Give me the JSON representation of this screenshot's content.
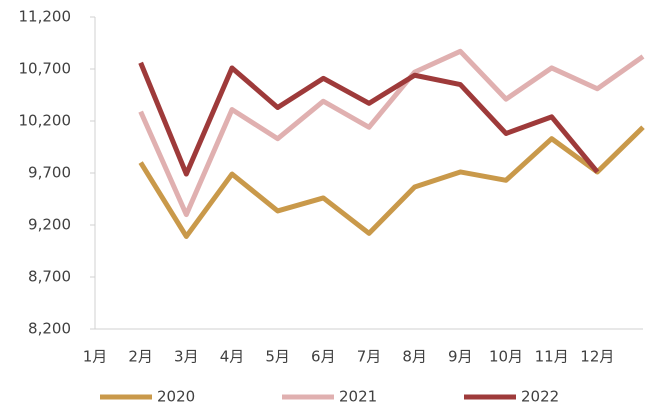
{
  "chart_data": {
    "type": "line",
    "categories": [
      "1月",
      "2月",
      "3月",
      "4月",
      "5月",
      "6月",
      "7月",
      "8月",
      "9月",
      "10月",
      "11月",
      "12月"
    ],
    "series": [
      {
        "name": "2020",
        "color": "#c9994a",
        "values": [
          9800,
          9090,
          9690,
          9335,
          9460,
          9120,
          9565,
          9710,
          9630,
          10030,
          9710,
          10140
        ]
      },
      {
        "name": "2021",
        "color": "#e0b0b0",
        "values": [
          10290,
          9300,
          10310,
          10030,
          10390,
          10140,
          10670,
          10870,
          10410,
          10710,
          10510,
          10820
        ]
      },
      {
        "name": "2022",
        "color": "#9e3a3a",
        "values": [
          10760,
          9690,
          10710,
          10330,
          10610,
          10370,
          10640,
          10550,
          10080,
          10240,
          9710,
          null
        ]
      }
    ],
    "ylim": [
      8200,
      11200
    ],
    "yticks": [
      {
        "value": 8200,
        "label": "8,200"
      },
      {
        "value": 8700,
        "label": "8,700"
      },
      {
        "value": 9200,
        "label": "9,200"
      },
      {
        "value": 9700,
        "label": "9,700"
      },
      {
        "value": 10200,
        "label": "10,200"
      },
      {
        "value": 10700,
        "label": "10,700"
      },
      {
        "value": 11200,
        "label": "11,200"
      }
    ],
    "legend": "bottom"
  }
}
